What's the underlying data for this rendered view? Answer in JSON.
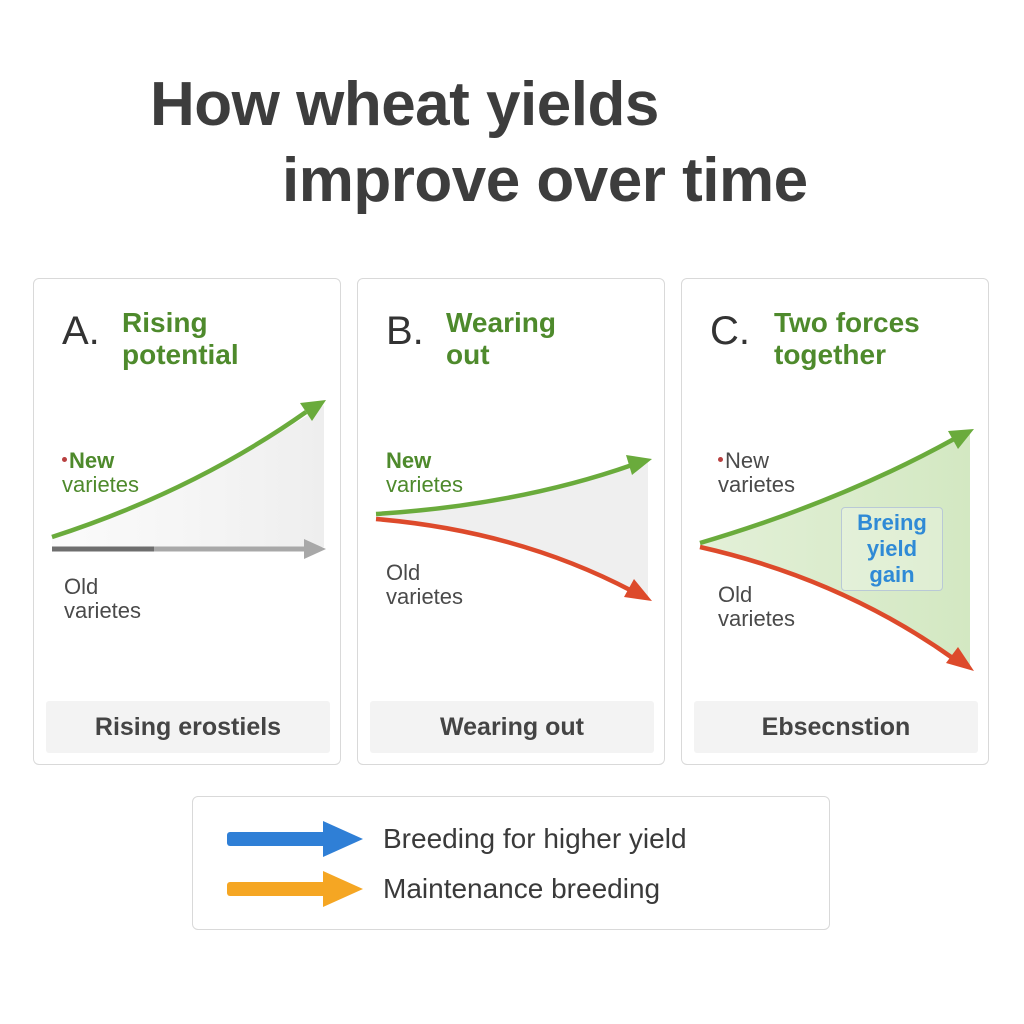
{
  "title": {
    "line1": "How wheat yields",
    "line2": "improve over time"
  },
  "panels": [
    {
      "letter": "A.",
      "heading": [
        "Rising",
        "potential"
      ],
      "new_label": [
        "New",
        "varietes"
      ],
      "old_label": [
        "Old",
        "varietes"
      ],
      "caption": "Rising erostiels"
    },
    {
      "letter": "B.",
      "heading": [
        "Wearing",
        "out"
      ],
      "new_label": [
        "New",
        "varietes"
      ],
      "old_label": [
        "Old",
        "varietes"
      ],
      "caption": "Wearing out"
    },
    {
      "letter": "C.",
      "heading": [
        "Two forces",
        "together"
      ],
      "new_label": [
        "New",
        "varietes"
      ],
      "old_label": [
        "Old",
        "varietes"
      ],
      "gain_label": [
        "Breing",
        "yield",
        "gain"
      ],
      "caption": "Ebsecnstion"
    }
  ],
  "legend": {
    "items": [
      {
        "label": "Breeding for higher yield",
        "color": "#2f7fd6",
        "icon": "arrow-right-icon"
      },
      {
        "label": "Maintenance breeding",
        "color": "#f5a623",
        "icon": "arrow-right-icon"
      }
    ]
  },
  "colors": {
    "green": "#6aab3c",
    "red": "#dd4a2b",
    "grey": "#9a9a9a",
    "dark_grey": "#6e6e6e",
    "heading_green": "#4e8a2c",
    "gain_fill": "#d8ecc8"
  }
}
